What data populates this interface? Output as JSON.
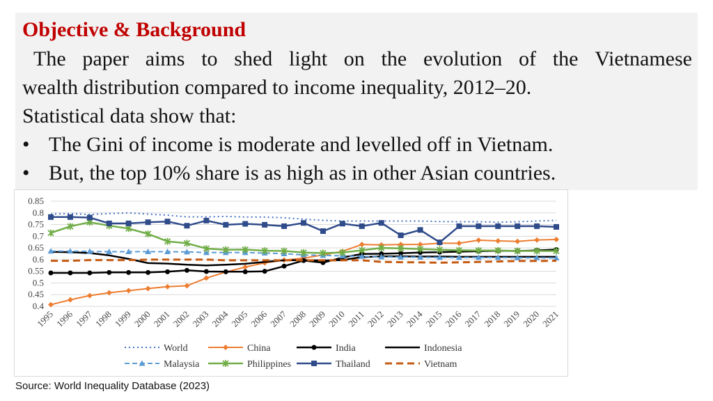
{
  "slide": {
    "title": "Objective & Background",
    "paragraph_line1_words": [
      "The",
      "paper",
      "aims",
      "to",
      "shed",
      "light",
      "on",
      "the",
      "evolution",
      "of",
      "the",
      "Vietnamese"
    ],
    "paragraph_line2": "wealth distribution compared to income inequality, 2012–20.",
    "paragraph_line3": "Statistical data show that:",
    "bullets": [
      "The Gini of income is moderate and levelled off in Vietnam.",
      "But, the top 10% share is as high as in other Asian countries."
    ],
    "bullet_glyph": "•",
    "source": "Source: World Inequality Database (2023)",
    "colors": {
      "title": "#c00000",
      "panel": "#f2f2f2"
    }
  },
  "chart_data": {
    "type": "line",
    "ylim": [
      0.4,
      0.85
    ],
    "yticks": [
      "0.4",
      "0.45",
      "0.5",
      "0.55",
      "0.6",
      "0.65",
      "0.7",
      "0.75",
      "0.8",
      "0.85"
    ],
    "x": [
      "1995",
      "1996",
      "1997",
      "1998",
      "1999",
      "2000",
      "2001",
      "2002",
      "2003",
      "2004",
      "2005",
      "2006",
      "2007",
      "2008",
      "2009",
      "2010",
      "2011",
      "2012",
      "2013",
      "2014",
      "2015",
      "2016",
      "2017",
      "2018",
      "2019",
      "2020",
      "2021"
    ],
    "grid": true,
    "legend_position": "bottom",
    "series": [
      {
        "name": "World",
        "color": "#4472c4",
        "dash": "dot",
        "marker": "none",
        "values": [
          0.795,
          0.797,
          0.793,
          0.797,
          0.8,
          0.795,
          0.79,
          0.783,
          0.783,
          0.785,
          0.782,
          0.782,
          0.779,
          0.773,
          0.768,
          0.765,
          0.765,
          0.765,
          0.765,
          0.765,
          0.763,
          0.762,
          0.762,
          0.76,
          0.762,
          0.765,
          0.768
        ]
      },
      {
        "name": "China",
        "color": "#ed7d31",
        "dash": "solid",
        "marker": "diamond",
        "values": [
          0.407,
          0.428,
          0.446,
          0.458,
          0.467,
          0.476,
          0.484,
          0.488,
          0.521,
          0.547,
          0.568,
          0.586,
          0.598,
          0.606,
          0.62,
          0.635,
          0.665,
          0.663,
          0.665,
          0.665,
          0.67,
          0.67,
          0.683,
          0.68,
          0.678,
          0.684,
          0.686
        ]
      },
      {
        "name": "India",
        "color": "#000000",
        "dash": "solid",
        "marker": "circle",
        "values": [
          0.543,
          0.543,
          0.543,
          0.545,
          0.545,
          0.545,
          0.548,
          0.554,
          0.549,
          0.548,
          0.548,
          0.55,
          0.572,
          0.596,
          0.587,
          0.609,
          0.624,
          0.625,
          0.627,
          0.63,
          0.632,
          0.634,
          0.636,
          0.638,
          0.637,
          0.639,
          0.643
        ]
      },
      {
        "name": "Indonesia",
        "color": "#000000",
        "dash": "solid",
        "marker": "none",
        "values": [
          0.633,
          0.632,
          0.628,
          0.618,
          0.603,
          0.585,
          0.583,
          0.578,
          0.575,
          0.578,
          0.582,
          0.59,
          0.597,
          0.598,
          0.596,
          0.598,
          0.611,
          0.614,
          0.614,
          0.613,
          0.613,
          0.612,
          0.612,
          0.612,
          0.612,
          0.612,
          0.612
        ]
      },
      {
        "name": "Malaysia",
        "color": "#5b9bd5",
        "dash": "dash",
        "marker": "triangle",
        "values": [
          0.636,
          0.636,
          0.635,
          0.634,
          0.634,
          0.634,
          0.634,
          0.633,
          0.63,
          0.63,
          0.63,
          0.628,
          0.625,
          0.62,
          0.618,
          0.616,
          0.614,
          0.612,
          0.611,
          0.61,
          0.609,
          0.609,
          0.609,
          0.609,
          0.608,
          0.608,
          0.607
        ]
      },
      {
        "name": "Philippines",
        "color": "#70ad47",
        "dash": "solid",
        "marker": "x",
        "values": [
          0.714,
          0.742,
          0.76,
          0.745,
          0.733,
          0.71,
          0.678,
          0.67,
          0.647,
          0.642,
          0.643,
          0.638,
          0.637,
          0.63,
          0.628,
          0.63,
          0.64,
          0.65,
          0.648,
          0.645,
          0.642,
          0.64,
          0.639,
          0.639,
          0.637,
          0.637,
          0.637
        ]
      },
      {
        "name": "Thailand",
        "color": "#2f4b8a",
        "dash": "solid",
        "marker": "square",
        "values": [
          0.782,
          0.782,
          0.78,
          0.755,
          0.755,
          0.76,
          0.763,
          0.745,
          0.767,
          0.749,
          0.753,
          0.749,
          0.743,
          0.757,
          0.722,
          0.754,
          0.743,
          0.757,
          0.704,
          0.727,
          0.674,
          0.743,
          0.743,
          0.743,
          0.743,
          0.743,
          0.74
        ]
      },
      {
        "name": "Vietnam",
        "color": "#c55a11",
        "dash": "longdash",
        "marker": "none",
        "values": [
          0.595,
          0.595,
          0.598,
          0.598,
          0.598,
          0.6,
          0.6,
          0.6,
          0.6,
          0.597,
          0.597,
          0.597,
          0.597,
          0.597,
          0.597,
          0.597,
          0.597,
          0.59,
          0.589,
          0.588,
          0.587,
          0.588,
          0.59,
          0.592,
          0.594,
          0.594,
          0.595
        ]
      }
    ]
  }
}
